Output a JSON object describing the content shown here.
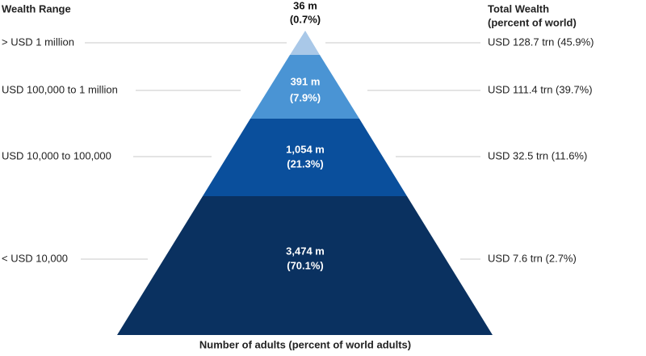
{
  "header": {
    "left": "Wealth Range",
    "right": [
      "Total Wealth",
      "(percent of  world)"
    ]
  },
  "tiers": [
    {
      "range": "> USD 1 million",
      "adults": "36 m",
      "share": "(0.7%)",
      "wealth": "USD 128.7 trn (45.9%)"
    },
    {
      "range": "USD 100,000  to 1 million",
      "adults": "391 m",
      "share": "(7.9%)",
      "wealth": "USD 111.4 trn (39.7%)"
    },
    {
      "range": "USD 10,000  to 100,000",
      "adults": "1,054 m",
      "share": "(21.3%)",
      "wealth": "USD 32.5 trn (11.6%)"
    },
    {
      "range": "< USD 10,000",
      "adults": "3,474 m",
      "share": "(70.1%)",
      "wealth": "USD 7.6 trn (2.7%)"
    }
  ],
  "footer": "Number of adults (percent of world adults)"
}
